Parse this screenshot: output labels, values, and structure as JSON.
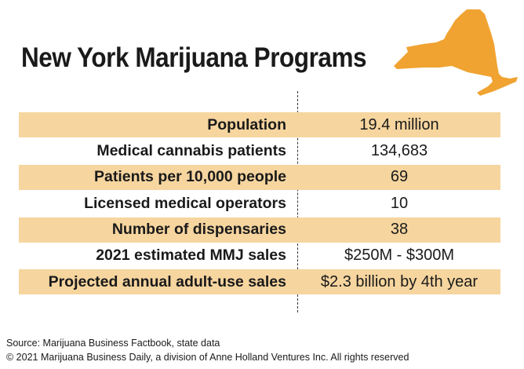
{
  "title": "New York Marijuana Programs",
  "colors": {
    "map_fill": "#f0a331",
    "row_shade": "#f6d59f"
  },
  "chart_data": {
    "type": "table",
    "title": "New York Marijuana Programs",
    "rows": [
      {
        "label": "Population",
        "value": "19.4 million",
        "shaded": true
      },
      {
        "label": "Medical cannabis patients",
        "value": "134,683",
        "shaded": false
      },
      {
        "label": "Patients per 10,000 people",
        "value": "69",
        "shaded": true
      },
      {
        "label": "Licensed medical operators",
        "value": "10",
        "shaded": false
      },
      {
        "label": "Number of dispensaries",
        "value": "38",
        "shaded": true
      },
      {
        "label": "2021 estimated MMJ sales",
        "value": "$250M - $300M",
        "shaded": false
      },
      {
        "label": "Projected annual adult-use sales",
        "value": "$2.3 billion by 4th year",
        "shaded": true
      }
    ]
  },
  "footer": {
    "source": "Source: Marijuana Business Factbook, state data",
    "copyright": "© 2021 Marijuana Business Daily, a division of Anne Holland Ventures Inc. All rights reserved"
  }
}
